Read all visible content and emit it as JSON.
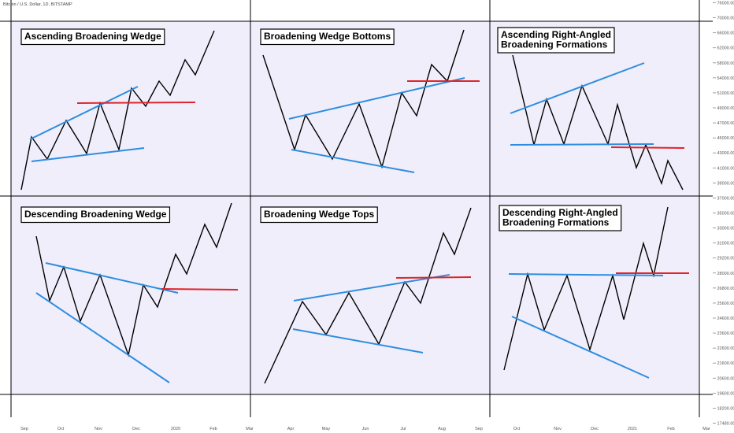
{
  "header": {
    "symbol_text": "Bitcoin / U.S. Dollar, 1D, BITSTAMP"
  },
  "colors": {
    "background": "#ffffff",
    "panel_fill": "#f0eefa",
    "price_line": "#000000",
    "trendline": "#2d8de0",
    "breakout_line": "#e0242c",
    "grid_line": "#000000"
  },
  "chart_data": {
    "type": "line",
    "price_axis": {
      "ticks": [
        "76000.00",
        "70000.00",
        "66000.00",
        "62000.00",
        "58000.00",
        "54000.00",
        "51000.00",
        "49000.00",
        "47000.00",
        "45000.00",
        "43000.00",
        "41000.00",
        "39000.00",
        "37000.00",
        "35000.00",
        "33000.00",
        "31000.00",
        "29200.00",
        "28000.00",
        "26800.00",
        "25600.00",
        "24600.00",
        "23600.00",
        "22600.00",
        "21600.00",
        "20600.00",
        "19600.00",
        "18200.00",
        "17480.00"
      ]
    },
    "time_axis": {
      "ticks": [
        "Sep",
        "Oct",
        "Nov",
        "Dec",
        "2020",
        "Feb",
        "Mar",
        "Apr",
        "May",
        "Jun",
        "Jul",
        "Aug",
        "Sep",
        "Oct",
        "Nov",
        "Dec",
        "2021",
        "Feb",
        "Mar"
      ]
    },
    "panels": [
      {
        "title_lines": [
          "Ascending Broadening Wedge"
        ]
      },
      {
        "title_lines": [
          "Broadening Wedge Bottoms"
        ]
      },
      {
        "title_lines": [
          "Ascending Right-Angled",
          "Broadening Formations"
        ]
      },
      {
        "title_lines": [
          "Descending Broadening Wedge"
        ]
      },
      {
        "title_lines": [
          "Broadening Wedge Tops"
        ]
      },
      {
        "title_lines": [
          "Descending Right-Angled",
          "Broadening Formations"
        ]
      }
    ]
  }
}
